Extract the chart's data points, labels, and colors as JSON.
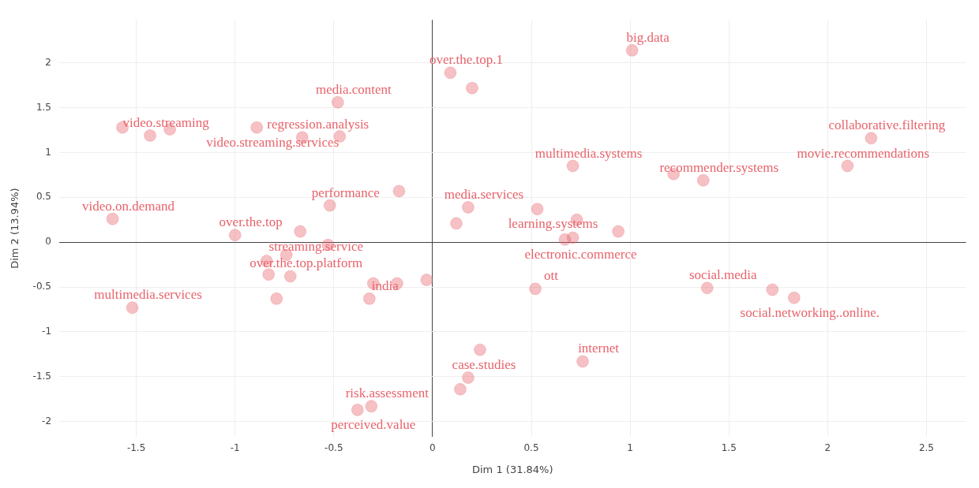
{
  "chart_data": {
    "type": "scatter",
    "xlabel": "Dim 1 (31.84%)",
    "ylabel": "Dim 2 (13.94%)",
    "xlim": [
      -1.89,
      2.7
    ],
    "ylim": [
      -2.17,
      2.48
    ],
    "xticks": [
      -1.5,
      -1,
      -0.5,
      0,
      0.5,
      1,
      1.5,
      2,
      2.5
    ],
    "yticks": [
      -2,
      -1.5,
      -1,
      -0.5,
      0,
      0.5,
      1,
      1.5,
      2
    ],
    "grid": true,
    "marker": "circle",
    "legend": false,
    "series": [
      {
        "color": "#e8636b",
        "x": [
          1.01,
          0.09,
          0.2,
          -0.48,
          -1.57,
          -1.43,
          -1.33,
          -0.89,
          -0.66,
          -0.47,
          2.22,
          2.1,
          0.71,
          1.22,
          1.37,
          -0.17,
          -0.52,
          0.18,
          0.53,
          0.73,
          0.12,
          -1.62,
          -1.0,
          -0.67,
          -0.53,
          0.94,
          0.67,
          0.71,
          -0.84,
          -0.74,
          -0.83,
          -0.72,
          -0.79,
          -0.3,
          -0.18,
          -0.03,
          -0.32,
          0.52,
          1.39,
          1.72,
          1.83,
          -1.52,
          0.76,
          0.24,
          0.18,
          0.14,
          -0.31,
          -0.38
        ],
        "values": [
          2.14,
          1.89,
          1.72,
          1.56,
          1.28,
          1.19,
          1.26,
          1.28,
          1.17,
          1.18,
          1.16,
          0.85,
          0.85,
          0.76,
          0.69,
          0.57,
          0.41,
          0.39,
          0.37,
          0.25,
          0.21,
          0.26,
          0.08,
          0.12,
          -0.03,
          0.12,
          0.03,
          0.05,
          -0.21,
          -0.14,
          -0.36,
          -0.38,
          -0.63,
          -0.46,
          -0.46,
          -0.42,
          -0.63,
          -0.52,
          -0.51,
          -0.53,
          -0.62,
          -0.73,
          -1.33,
          -1.2,
          -1.51,
          -1.64,
          -1.83,
          -1.87
        ],
        "value_labels": [
          "big.data",
          "over.the.top.1",
          null,
          "media.content",
          null,
          "video.streaming",
          null,
          "video.streaming.services",
          "regression.analysis",
          null,
          "collaborative.filtering",
          "movie.recommendations",
          "multimedia.systems",
          null,
          "recommender.systems",
          null,
          "performance",
          "media.services",
          "learning.systems",
          null,
          null,
          "video.on.demand",
          "over.the.top",
          "streaming.service",
          null,
          null,
          "electronic.commerce",
          null,
          null,
          null,
          null,
          "over.the.top.platform",
          null,
          null,
          null,
          null,
          "india",
          "ott",
          "social.media",
          null,
          "social.networking..online.",
          "multimedia.services",
          "internet",
          null,
          "case.studies",
          null,
          "risk.assessment",
          "perceived.value"
        ]
      }
    ]
  }
}
